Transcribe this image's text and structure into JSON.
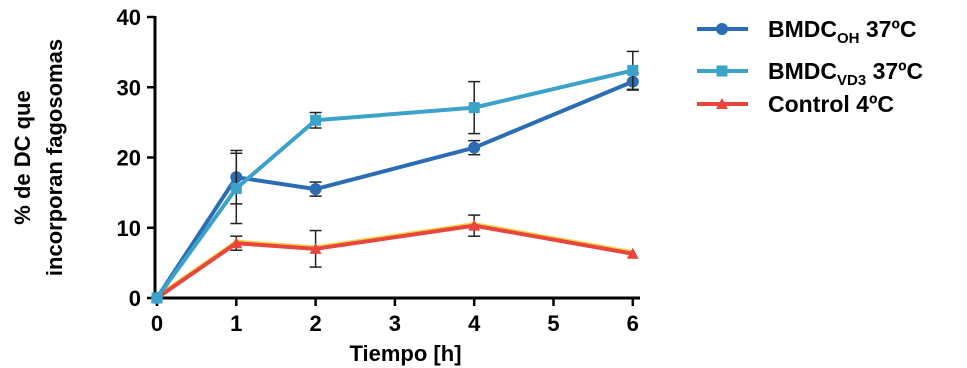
{
  "chart_data": {
    "type": "line",
    "xlabel": "Tiempo [h]",
    "ylabel_line1": "% de DC que",
    "ylabel_line2": "incorporan fagosomas",
    "xlim": [
      0,
      6.5
    ],
    "ylim": [
      0,
      40
    ],
    "xticks": [
      0,
      1,
      2,
      3,
      4,
      5,
      6
    ],
    "yticks": [
      0,
      10,
      20,
      30,
      40
    ],
    "grid": false,
    "legend_position": "right",
    "series": [
      {
        "name": "BMDC_OH 37ºC",
        "legend_main": "BMDC",
        "legend_sub": "OH",
        "legend_suffix": " 37ºC",
        "color": "#2A6DB5",
        "marker": "circle",
        "x": [
          0,
          1,
          2,
          4,
          6
        ],
        "y": [
          0,
          17.2,
          15.5,
          21.4,
          30.8
        ],
        "err": [
          0,
          3.8,
          1.0,
          1.0,
          1.2
        ]
      },
      {
        "name": "BMDC_VD3 37ºC",
        "legend_main": "BMDC",
        "legend_sub": "VD3",
        "legend_suffix": " 37ºC",
        "color": "#3BA3C9",
        "marker": "square",
        "x": [
          0,
          1,
          2,
          4,
          6
        ],
        "y": [
          0,
          15.6,
          25.3,
          27.1,
          32.4
        ],
        "err": [
          0,
          5.0,
          1.1,
          3.7,
          2.7
        ]
      },
      {
        "name": "Control 4ºC",
        "legend_main": "Control 4ºC",
        "legend_sub": "",
        "legend_suffix": "",
        "color": "#E8453C",
        "marker": "triangle",
        "x": [
          0,
          1,
          2,
          4,
          6
        ],
        "y": [
          0,
          7.8,
          7.0,
          10.3,
          6.3
        ],
        "err": [
          0,
          1.0,
          2.6,
          1.5,
          0
        ]
      }
    ]
  }
}
